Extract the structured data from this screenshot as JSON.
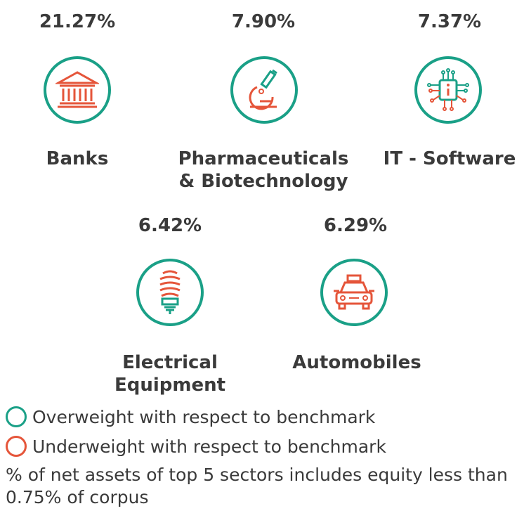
{
  "sectors": [
    {
      "name_line1": "Banks",
      "name_line2": "",
      "percent": "21.27%",
      "icon": "bank-icon",
      "weight": "overweight"
    },
    {
      "name_line1": "Pharmaceuticals",
      "name_line2": "& Biotechnology",
      "percent": "7.90%",
      "icon": "microscope-icon",
      "weight": "overweight"
    },
    {
      "name_line1": "IT - Software",
      "name_line2": "",
      "percent": "7.37%",
      "icon": "chip-icon",
      "weight": "overweight"
    },
    {
      "name_line1": "Electrical",
      "name_line2": "Equipment",
      "percent": "6.42%",
      "icon": "bulb-icon",
      "weight": "overweight"
    },
    {
      "name_line1": "Automobiles",
      "name_line2": "",
      "percent": "6.29%",
      "icon": "car-icon",
      "weight": "overweight"
    }
  ],
  "legend": {
    "overweight": "Overweight with respect to benchmark",
    "underweight": "Underweight with respect to benchmark"
  },
  "footnote": "% of net assets of top 5 sectors includes equity less than 0.75% of corpus",
  "colors": {
    "overweight": "#1aa087",
    "underweight": "#e5553a",
    "text": "#3a3a3a"
  }
}
